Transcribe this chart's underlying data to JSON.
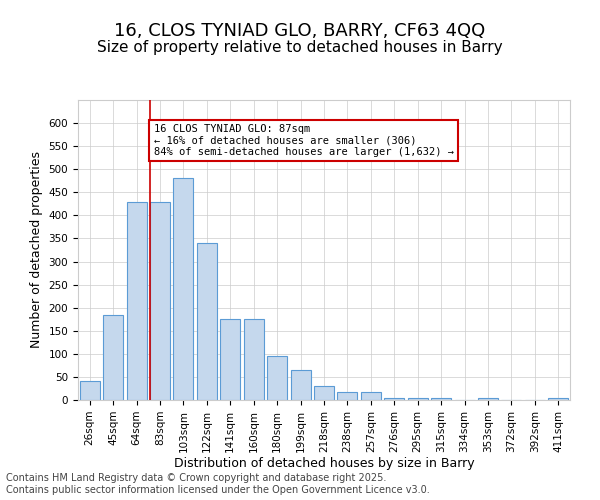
{
  "title_line1": "16, CLOS TYNIAD GLO, BARRY, CF63 4QQ",
  "title_line2": "Size of property relative to detached houses in Barry",
  "xlabel": "Distribution of detached houses by size in Barry",
  "ylabel": "Number of detached properties",
  "categories": [
    "26sqm",
    "45sqm",
    "64sqm",
    "83sqm",
    "103sqm",
    "122sqm",
    "141sqm",
    "160sqm",
    "180sqm",
    "199sqm",
    "218sqm",
    "238sqm",
    "257sqm",
    "276sqm",
    "295sqm",
    "315sqm",
    "334sqm",
    "353sqm",
    "372sqm",
    "392sqm",
    "411sqm"
  ],
  "values": [
    42,
    185,
    430,
    430,
    480,
    340,
    175,
    175,
    95,
    65,
    30,
    18,
    18,
    4,
    4,
    4,
    0,
    4,
    0,
    0,
    4
  ],
  "bar_color": "#c5d8ed",
  "bar_edge_color": "#5b9bd5",
  "red_line_bar_index": 3,
  "annotation_text": "16 CLOS TYNIAD GLO: 87sqm\n← 16% of detached houses are smaller (306)\n84% of semi-detached houses are larger (1,632) →",
  "annotation_box_color": "#ffffff",
  "annotation_box_edge_color": "#cc0000",
  "ylim": [
    0,
    650
  ],
  "yticks": [
    0,
    50,
    100,
    150,
    200,
    250,
    300,
    350,
    400,
    450,
    500,
    550,
    600
  ],
  "background_color": "#ffffff",
  "grid_color": "#cccccc",
  "footer_text": "Contains HM Land Registry data © Crown copyright and database right 2025.\nContains public sector information licensed under the Open Government Licence v3.0.",
  "title_fontsize": 13,
  "subtitle_fontsize": 11,
  "axis_label_fontsize": 9,
  "tick_fontsize": 7.5,
  "footer_fontsize": 7
}
